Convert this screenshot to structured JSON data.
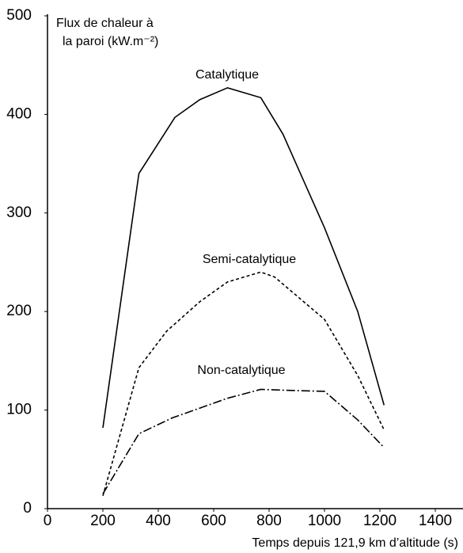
{
  "chart_data": {
    "type": "line",
    "ylabel": [
      "Flux de chaleur à",
      "la paroi (kW.m⁻²)"
    ],
    "xlabel": "Temps depuis 121,9 km d’altitude (s)",
    "xlim": [
      0,
      1400
    ],
    "xticks": [
      0,
      200,
      400,
      600,
      800,
      1000,
      1200,
      1400
    ],
    "ylim": [
      0,
      500
    ],
    "yticks": [
      0,
      100,
      200,
      300,
      400,
      500
    ],
    "series": [
      {
        "name": "Catalytique",
        "color": "#000000",
        "dash": "solid",
        "x": [
          200,
          330,
          460,
          550,
          650,
          770,
          850,
          1000,
          1120,
          1215
        ],
        "values": [
          82,
          340,
          397,
          415,
          427,
          417,
          380,
          285,
          200,
          105
        ]
      },
      {
        "name": "Semi-catalytique",
        "color": "#000000",
        "dash": "dashed",
        "x": [
          200,
          330,
          430,
          550,
          650,
          770,
          820,
          1000,
          1120,
          1215
        ],
        "values": [
          13,
          143,
          180,
          210,
          230,
          240,
          235,
          192,
          135,
          80
        ]
      },
      {
        "name": "Non-catalytique",
        "color": "#000000",
        "dash": "dashdot",
        "x": [
          200,
          330,
          450,
          650,
          770,
          870,
          1000,
          1120,
          1215
        ],
        "values": [
          15,
          76,
          92,
          112,
          121,
          120,
          119,
          90,
          62
        ]
      }
    ]
  }
}
